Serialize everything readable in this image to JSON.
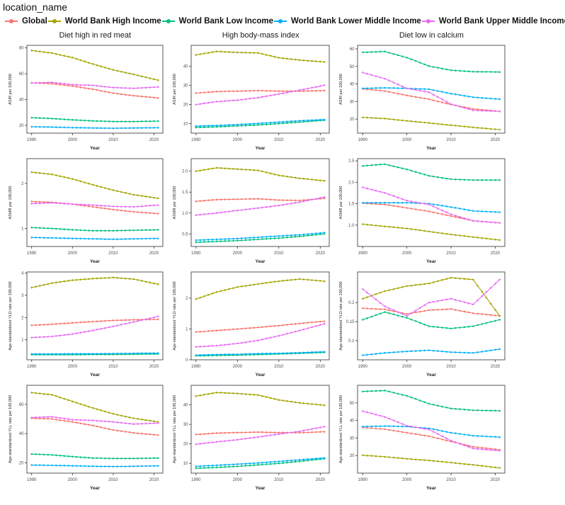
{
  "header": {
    "title": "location_name"
  },
  "legend": {
    "items": [
      {
        "label": "Global",
        "color": "#F8766D"
      },
      {
        "label": "World Bank High Income",
        "color": "#A3A500"
      },
      {
        "label": "World Bank Low Income",
        "color": "#00BF7D"
      },
      {
        "label": "World Bank Lower Middle Income",
        "color": "#00B0F6"
      },
      {
        "label": "World Bank Upper Middle Income",
        "color": "#E76BF3"
      }
    ]
  },
  "columns": [
    "Diet high in red meat",
    "High body-mass index",
    "Diet low in calcium"
  ],
  "x_axis": {
    "label": "Year",
    "ticks": [
      1990,
      2000,
      2010,
      2020
    ],
    "range": [
      1990,
      2021
    ]
  },
  "chart_data": [
    {
      "id": "asir-red-meat",
      "type": "line",
      "title": "Diet high in red meat",
      "ylabel": "ASIR per 100,000",
      "ylim": [
        14,
        82
      ],
      "yticks": [
        20,
        40,
        60,
        80
      ],
      "ytick_labels": [
        "20",
        "40",
        "60",
        "80"
      ],
      "x": [
        1990,
        1995,
        2000,
        2005,
        2010,
        2015,
        2021
      ],
      "series": [
        {
          "name": "Global",
          "values": [
            53,
            52.3,
            50.5,
            48,
            45,
            43,
            41.3
          ]
        },
        {
          "name": "World Bank High Income",
          "values": [
            78,
            76,
            72.5,
            67.5,
            63,
            59.5,
            55
          ]
        },
        {
          "name": "World Bank Low Income",
          "values": [
            26,
            25.3,
            24.3,
            23.5,
            23,
            23,
            23.3
          ]
        },
        {
          "name": "World Bank Lower Middle Income",
          "values": [
            19,
            18.7,
            18.3,
            18,
            17.8,
            18,
            18.2
          ]
        },
        {
          "name": "World Bank Upper Middle Income",
          "values": [
            52.8,
            53.3,
            51.5,
            51,
            49.3,
            48.7,
            49.8
          ]
        }
      ]
    },
    {
      "id": "asir-bmi",
      "type": "line",
      "title": "High body-mass index",
      "ylabel": "ASIR per 100,000",
      "ylim": [
        5,
        51
      ],
      "yticks": [
        10,
        20,
        30,
        40
      ],
      "ytick_labels": [
        "10",
        "20",
        "30",
        "40"
      ],
      "x": [
        1990,
        1995,
        2000,
        2005,
        2010,
        2015,
        2021
      ],
      "series": [
        {
          "name": "Global",
          "values": [
            26,
            26.8,
            27,
            27.3,
            27,
            27,
            27.3
          ]
        },
        {
          "name": "World Bank High Income",
          "values": [
            46,
            47.8,
            47.3,
            47,
            44.5,
            43.3,
            42.3
          ]
        },
        {
          "name": "World Bank Low Income",
          "values": [
            8,
            8.3,
            8.8,
            9.3,
            10,
            10.8,
            11.8
          ]
        },
        {
          "name": "World Bank Lower Middle Income",
          "values": [
            8.7,
            9,
            9.5,
            10.1,
            10.8,
            11.5,
            12.1
          ]
        },
        {
          "name": "World Bank Upper Middle Income",
          "values": [
            20,
            21.5,
            22.3,
            23.6,
            25.5,
            27.5,
            30.1
          ]
        }
      ]
    },
    {
      "id": "asir-calcium",
      "type": "line",
      "title": "Diet low in calcium",
      "ylabel": "ASIR per 100,000",
      "ylim": [
        12,
        62
      ],
      "yticks": [
        20,
        30,
        40,
        50,
        60
      ],
      "ytick_labels": [
        "20",
        "30",
        "40",
        "50",
        "60"
      ],
      "x": [
        1990,
        1995,
        2000,
        2005,
        2010,
        2015,
        2021
      ],
      "series": [
        {
          "name": "Global",
          "values": [
            37.2,
            36,
            33.5,
            31.3,
            28.3,
            25.8,
            24.4
          ]
        },
        {
          "name": "World Bank High Income",
          "values": [
            21,
            20.3,
            19,
            17.8,
            16.5,
            15.3,
            14
          ]
        },
        {
          "name": "World Bank Low Income",
          "values": [
            58,
            58.5,
            55,
            50.2,
            47.8,
            47,
            46.8
          ]
        },
        {
          "name": "World Bank Lower Middle Income",
          "values": [
            37.5,
            37.8,
            37.5,
            37,
            34.5,
            32.5,
            31.3
          ]
        },
        {
          "name": "World Bank Upper Middle Income",
          "values": [
            46.5,
            43,
            37.5,
            35.3,
            28.5,
            25,
            24.4
          ]
        }
      ]
    },
    {
      "id": "asmr-red-meat",
      "type": "line",
      "title": "Diet high in red meat",
      "ylabel": "ASMR per 100,000",
      "ylim": [
        0.6,
        2.55
      ],
      "yticks": [
        1,
        2
      ],
      "ytick_labels": [
        "1",
        "2"
      ],
      "x": [
        1990,
        1995,
        2000,
        2005,
        2010,
        2015,
        2021
      ],
      "series": [
        {
          "name": "Global",
          "values": [
            1.6,
            1.58,
            1.54,
            1.48,
            1.42,
            1.37,
            1.33
          ]
        },
        {
          "name": "World Bank High Income",
          "values": [
            2.25,
            2.2,
            2.1,
            1.97,
            1.85,
            1.75,
            1.67
          ]
        },
        {
          "name": "World Bank Low Income",
          "values": [
            1.02,
            1.0,
            0.97,
            0.95,
            0.95,
            0.96,
            0.97
          ]
        },
        {
          "name": "World Bank Lower Middle Income",
          "values": [
            0.8,
            0.79,
            0.78,
            0.77,
            0.76,
            0.77,
            0.78
          ]
        },
        {
          "name": "World Bank Upper Middle Income",
          "values": [
            1.55,
            1.57,
            1.54,
            1.52,
            1.49,
            1.48,
            1.52
          ]
        }
      ]
    },
    {
      "id": "asmr-bmi",
      "type": "line",
      "title": "High body-mass index",
      "ylabel": "ASMR per 100,000",
      "ylim": [
        0.2,
        2.3
      ],
      "yticks": [
        0.5,
        1.0,
        1.5,
        2.0
      ],
      "ytick_labels": [
        "0.5",
        "1.0",
        "1.5",
        "2.0"
      ],
      "x": [
        1990,
        1995,
        2000,
        2005,
        2010,
        2015,
        2021
      ],
      "series": [
        {
          "name": "Global",
          "values": [
            1.28,
            1.32,
            1.33,
            1.34,
            1.31,
            1.3,
            1.35
          ]
        },
        {
          "name": "World Bank High Income",
          "values": [
            2.0,
            2.08,
            2.05,
            2.02,
            1.9,
            1.83,
            1.77
          ]
        },
        {
          "name": "World Bank Low Income",
          "values": [
            0.3,
            0.32,
            0.34,
            0.37,
            0.4,
            0.44,
            0.5
          ]
        },
        {
          "name": "World Bank Lower Middle Income",
          "values": [
            0.35,
            0.37,
            0.39,
            0.42,
            0.45,
            0.48,
            0.53
          ]
        },
        {
          "name": "World Bank Upper Middle Income",
          "values": [
            0.95,
            1.0,
            1.06,
            1.12,
            1.18,
            1.26,
            1.38
          ]
        }
      ]
    },
    {
      "id": "asmr-calcium",
      "type": "line",
      "title": "Diet low in calcium",
      "ylabel": "ASMR per 100,000",
      "ylim": [
        0.5,
        2.55
      ],
      "yticks": [
        1.0,
        1.5,
        2.0,
        2.5
      ],
      "ytick_labels": [
        "1.0",
        "1.5",
        "2.0",
        "2.5"
      ],
      "x": [
        1990,
        1995,
        2000,
        2005,
        2010,
        2015,
        2021
      ],
      "series": [
        {
          "name": "Global",
          "values": [
            1.51,
            1.48,
            1.4,
            1.32,
            1.21,
            1.1,
            1.05
          ]
        },
        {
          "name": "World Bank High Income",
          "values": [
            1.02,
            0.97,
            0.92,
            0.85,
            0.78,
            0.72,
            0.65
          ]
        },
        {
          "name": "World Bank Low Income",
          "values": [
            2.38,
            2.42,
            2.3,
            2.15,
            2.07,
            2.05,
            2.05
          ]
        },
        {
          "name": "World Bank Lower Middle Income",
          "values": [
            1.52,
            1.52,
            1.52,
            1.5,
            1.42,
            1.33,
            1.3
          ]
        },
        {
          "name": "World Bank Upper Middle Income",
          "values": [
            1.88,
            1.75,
            1.57,
            1.48,
            1.25,
            1.1,
            1.05
          ]
        }
      ]
    },
    {
      "id": "yld-red-meat",
      "type": "line",
      "title": "Diet high in red meat",
      "ylabel": "Age-standardized YLD rate per 100,000",
      "ylim": [
        0.1,
        4.05
      ],
      "yticks": [
        1,
        2,
        3,
        4
      ],
      "ytick_labels": [
        "1",
        "2",
        "3",
        "4"
      ],
      "x": [
        1990,
        1995,
        2000,
        2005,
        2010,
        2015,
        2021
      ],
      "series": [
        {
          "name": "Global",
          "values": [
            1.65,
            1.7,
            1.76,
            1.82,
            1.87,
            1.9,
            1.92
          ]
        },
        {
          "name": "World Bank High Income",
          "values": [
            3.35,
            3.55,
            3.68,
            3.75,
            3.8,
            3.73,
            3.5
          ]
        },
        {
          "name": "World Bank Low Income",
          "values": [
            0.33,
            0.33,
            0.33,
            0.34,
            0.34,
            0.35,
            0.36
          ]
        },
        {
          "name": "World Bank Lower Middle Income",
          "values": [
            0.36,
            0.36,
            0.37,
            0.37,
            0.38,
            0.39,
            0.4
          ]
        },
        {
          "name": "World Bank Upper Middle Income",
          "values": [
            1.1,
            1.15,
            1.26,
            1.42,
            1.6,
            1.8,
            2.05
          ]
        }
      ]
    },
    {
      "id": "yld-bmi",
      "type": "line",
      "title": "High body-mass index",
      "ylabel": "Age-standardized YLD rate per 100,000",
      "ylim": [
        0,
        2.85
      ],
      "yticks": [
        0,
        1,
        2
      ],
      "ytick_labels": [
        "0",
        "1",
        "2"
      ],
      "x": [
        1990,
        1995,
        2000,
        2005,
        2010,
        2015,
        2021
      ],
      "series": [
        {
          "name": "Global",
          "values": [
            0.9,
            0.95,
            1.0,
            1.05,
            1.11,
            1.18,
            1.25
          ]
        },
        {
          "name": "World Bank High Income",
          "values": [
            1.97,
            2.2,
            2.36,
            2.46,
            2.55,
            2.62,
            2.55
          ]
        },
        {
          "name": "World Bank Low Income",
          "values": [
            0.13,
            0.14,
            0.15,
            0.17,
            0.19,
            0.21,
            0.24
          ]
        },
        {
          "name": "World Bank Lower Middle Income",
          "values": [
            0.15,
            0.17,
            0.18,
            0.2,
            0.21,
            0.23,
            0.26
          ]
        },
        {
          "name": "World Bank Upper Middle Income",
          "values": [
            0.42,
            0.46,
            0.53,
            0.63,
            0.78,
            0.95,
            1.17
          ]
        }
      ]
    },
    {
      "id": "yld-calcium",
      "type": "line",
      "title": "Diet low in calcium",
      "ylabel": "Age-standardized YLD rate per 100,000",
      "ylim": [
        0.05,
        0.28
      ],
      "yticks": [
        0.1,
        0.15,
        0.2
      ],
      "ytick_labels": [
        "0.1",
        "0.15",
        "0.2"
      ],
      "x": [
        1990,
        1995,
        2000,
        2005,
        2010,
        2015,
        2021
      ],
      "series": [
        {
          "name": "Global",
          "values": [
            0.185,
            0.182,
            0.17,
            0.18,
            0.183,
            0.172,
            0.165
          ]
        },
        {
          "name": "World Bank High Income",
          "values": [
            0.21,
            0.23,
            0.243,
            0.25,
            0.265,
            0.26,
            0.165
          ]
        },
        {
          "name": "World Bank Low Income",
          "values": [
            0.155,
            0.175,
            0.16,
            0.138,
            0.132,
            0.138,
            0.155
          ]
        },
        {
          "name": "World Bank Lower Middle Income",
          "values": [
            0.062,
            0.068,
            0.072,
            0.075,
            0.07,
            0.068,
            0.078
          ]
        },
        {
          "name": "World Bank Upper Middle Income",
          "values": [
            0.235,
            0.19,
            0.165,
            0.2,
            0.21,
            0.195,
            0.26
          ]
        }
      ]
    },
    {
      "id": "yll-red-meat",
      "type": "line",
      "title": "Diet high in red meat",
      "ylabel": "Age-standardized YLL rate per 100,000",
      "ylim": [
        13,
        73
      ],
      "yticks": [
        20,
        40,
        60
      ],
      "ytick_labels": [
        "20",
        "40",
        "60"
      ],
      "x": [
        1990,
        1995,
        2000,
        2005,
        2010,
        2015,
        2021
      ],
      "series": [
        {
          "name": "Global",
          "values": [
            50.5,
            50,
            48,
            45.5,
            42.5,
            40.5,
            39
          ]
        },
        {
          "name": "World Bank High Income",
          "values": [
            68,
            66.5,
            62,
            57.5,
            53.5,
            50.5,
            48
          ]
        },
        {
          "name": "World Bank Low Income",
          "values": [
            26,
            25.5,
            24.3,
            23.3,
            23,
            23,
            23.3
          ]
        },
        {
          "name": "World Bank Lower Middle Income",
          "values": [
            18.5,
            18.3,
            18,
            17.7,
            17.5,
            17.7,
            18
          ]
        },
        {
          "name": "World Bank Upper Middle Income",
          "values": [
            51,
            51.5,
            49.5,
            49,
            48,
            46.5,
            47.2
          ]
        }
      ]
    },
    {
      "id": "yll-bmi",
      "type": "line",
      "title": "High body-mass index",
      "ylabel": "Age-standardized YLL rate per 100,000",
      "ylim": [
        5,
        50
      ],
      "yticks": [
        10,
        20,
        30,
        40
      ],
      "ytick_labels": [
        "10",
        "20",
        "30",
        "40"
      ],
      "x": [
        1990,
        1995,
        2000,
        2005,
        2010,
        2015,
        2021
      ],
      "series": [
        {
          "name": "Global",
          "values": [
            24.8,
            25.5,
            25.8,
            26,
            25.8,
            25.7,
            26.2
          ]
        },
        {
          "name": "World Bank High Income",
          "values": [
            44.5,
            46.3,
            45.8,
            45,
            42.5,
            41,
            39.8
          ]
        },
        {
          "name": "World Bank Low Income",
          "values": [
            7.5,
            7.9,
            8.5,
            9.2,
            10,
            11,
            12.4
          ]
        },
        {
          "name": "World Bank Lower Middle Income",
          "values": [
            8.5,
            9,
            9.6,
            10.2,
            11,
            11.8,
            12.8
          ]
        },
        {
          "name": "World Bank Upper Middle Income",
          "values": [
            19.8,
            21,
            22.1,
            23.5,
            25,
            26.4,
            28.8
          ]
        }
      ]
    },
    {
      "id": "yll-calcium",
      "type": "line",
      "title": "Diet low in calcium",
      "ylabel": "Age-standardized YLL rate per 100,000",
      "ylim": [
        10,
        60
      ],
      "yticks": [
        20,
        30,
        40,
        50
      ],
      "ytick_labels": [
        "20",
        "30",
        "40",
        "50"
      ],
      "x": [
        1990,
        1995,
        2000,
        2005,
        2010,
        2015,
        2021
      ],
      "series": [
        {
          "name": "Global",
          "values": [
            36,
            35,
            33,
            31,
            28,
            25,
            23.3
          ]
        },
        {
          "name": "World Bank High Income",
          "values": [
            20.2,
            19.3,
            18.2,
            17.2,
            16,
            14.7,
            13
          ]
        },
        {
          "name": "World Bank Low Income",
          "values": [
            56.5,
            57,
            54,
            49.5,
            46.8,
            45.8,
            45.5
          ]
        },
        {
          "name": "World Bank Lower Middle Income",
          "values": [
            36.5,
            36.8,
            36.5,
            35.5,
            33,
            31.3,
            30.5
          ]
        },
        {
          "name": "World Bank Upper Middle Income",
          "values": [
            45.3,
            42,
            37,
            34.8,
            28.5,
            24,
            22.8
          ]
        }
      ]
    }
  ]
}
